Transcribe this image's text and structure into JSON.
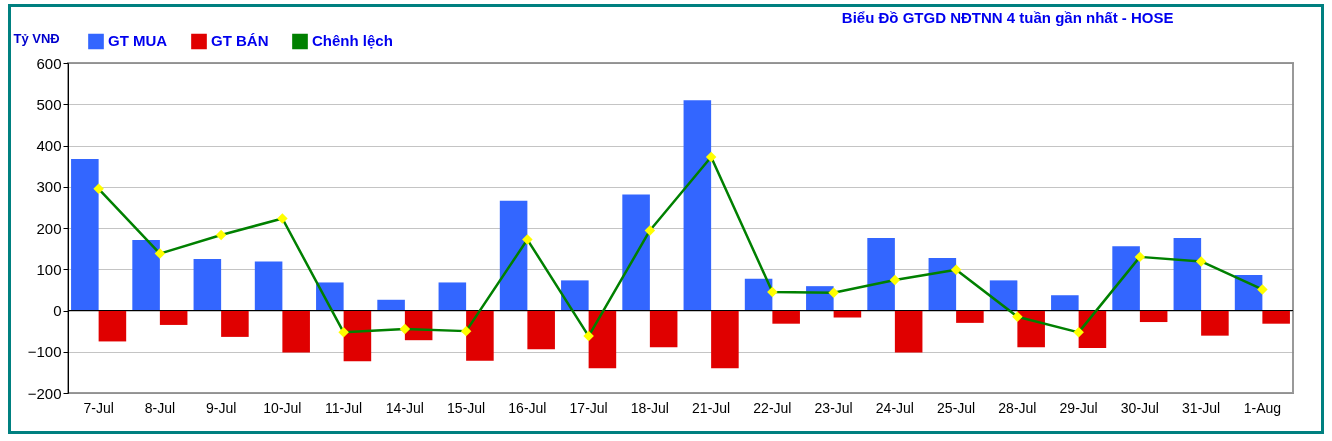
{
  "chart_data": {
    "type": "bar",
    "title": "Biểu Đồ GTGD NĐTNN 4 tuần gần nhất - HOSE",
    "ylabel": "Tỷ VNĐ",
    "categories": [
      "7-Jul",
      "8-Jul",
      "9-Jul",
      "10-Jul",
      "11-Jul",
      "14-Jul",
      "15-Jul",
      "16-Jul",
      "17-Jul",
      "18-Jul",
      "21-Jul",
      "22-Jul",
      "23-Jul",
      "24-Jul",
      "25-Jul",
      "28-Jul",
      "29-Jul",
      "30-Jul",
      "31-Jul",
      "1-Aug"
    ],
    "series": [
      {
        "name": "GT MUA",
        "color": "#3366ff",
        "values": [
          367,
          171,
          125,
          119,
          68,
          26,
          68,
          266,
          73,
          281,
          510,
          77,
          59,
          176,
          127,
          73,
          37,
          156,
          176,
          86
        ]
      },
      {
        "name": "GT BÁN",
        "color": "#e00000",
        "values": [
          -75,
          -35,
          -64,
          -102,
          -123,
          -72,
          -122,
          -94,
          -140,
          -89,
          -140,
          -32,
          -17,
          -102,
          -30,
          -89,
          -91,
          -28,
          -61,
          -32
        ]
      },
      {
        "name": "Chênh lệch",
        "type": "line",
        "color": "#008000",
        "marker": "diamond",
        "values": [
          295,
          138,
          183,
          223,
          -53,
          -45,
          -50,
          172,
          -62,
          194,
          372,
          45,
          43,
          74,
          99,
          -15,
          -53,
          130,
          119,
          51
        ]
      }
    ],
    "ylim": [
      -200,
      600
    ],
    "yticks": [
      -200,
      -100,
      0,
      100,
      200,
      300,
      400,
      500,
      600
    ],
    "grid": "y",
    "legend": "top left"
  }
}
